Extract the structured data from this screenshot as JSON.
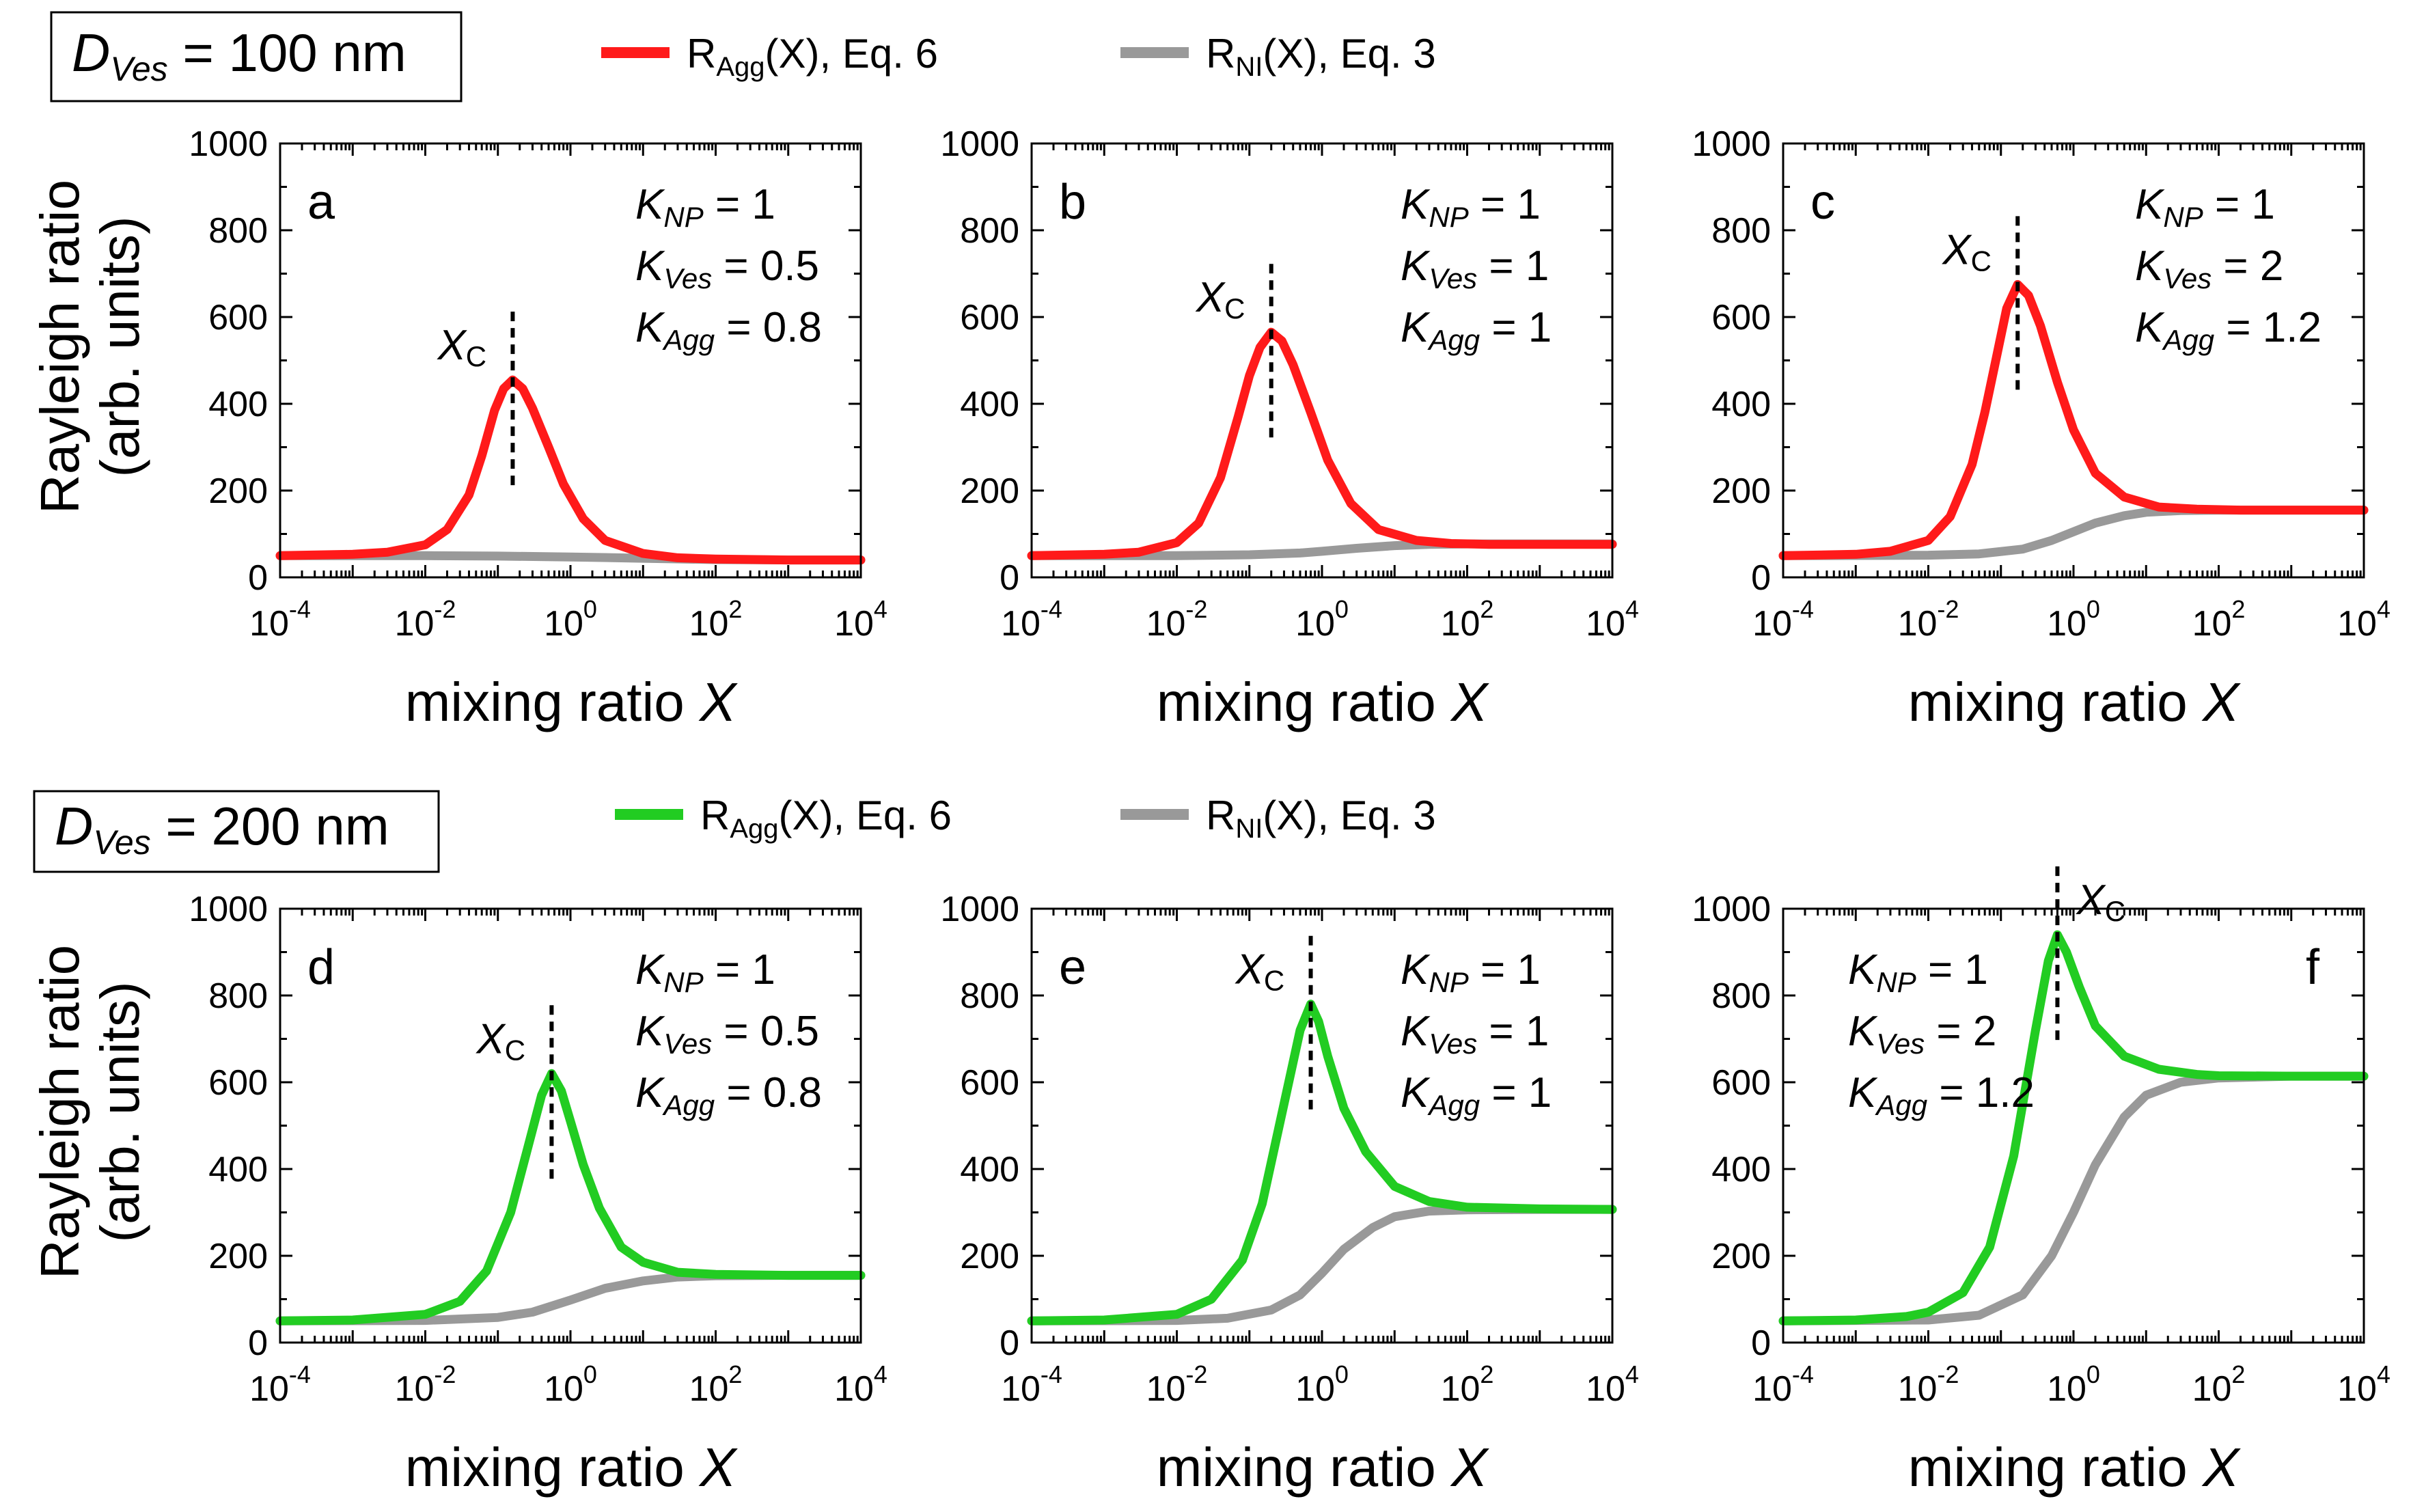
{
  "figure": {
    "rows": [
      {
        "label_prefix": "D",
        "label_sub": "Ves",
        "label_rest": " = 100 nm",
        "legend": [
          {
            "main": "R",
            "sub": "Agg",
            "rest": "(X), Eq. 6",
            "color": "#ff1a1a"
          },
          {
            "main": "R",
            "sub": "NI",
            "rest": "(X), Eq. 3",
            "color": "#999999"
          }
        ]
      },
      {
        "label_prefix": "D",
        "label_sub": "Ves",
        "label_rest": " = 200 nm",
        "legend": [
          {
            "main": "R",
            "sub": "Agg",
            "rest": "(X), Eq. 6",
            "color": "#22cc22"
          },
          {
            "main": "R",
            "sub": "NI",
            "rest": "(X), Eq. 3",
            "color": "#999999"
          }
        ]
      }
    ],
    "ylabel_line1": "Rayleigh ratio",
    "ylabel_line2": "(arb. units)",
    "xlabel_main": "mixing ratio ",
    "xlabel_var": "X",
    "xc_main": "X",
    "xc_sub": "C",
    "y_ticks": [
      "0",
      "200",
      "400",
      "600",
      "800",
      "1000"
    ],
    "x_ticks": [
      {
        "base": "10",
        "exp": "-4"
      },
      {
        "base": "10",
        "exp": "-2"
      },
      {
        "base": "10",
        "exp": "0"
      },
      {
        "base": "10",
        "exp": "2"
      },
      {
        "base": "10",
        "exp": "4"
      }
    ]
  },
  "chart_data": [
    {
      "type": "line",
      "panel": "a",
      "row": 0,
      "col": 0,
      "params": [
        {
          "name": "K",
          "sub": "NP",
          "value": "= 1"
        },
        {
          "name": "K",
          "sub": "Ves",
          "value": "= 0.5"
        },
        {
          "name": "K",
          "sub": "Agg",
          "value": "= 0.8"
        }
      ],
      "xscale": "log",
      "xlim": [
        0.0001,
        10000
      ],
      "ylim": [
        0,
        1000
      ],
      "xc": 0.16,
      "series": [
        {
          "name": "R_Agg(X), Eq. 6",
          "color": "#ff1a1a",
          "x": [
            0.0001,
            0.001,
            0.003,
            0.01,
            0.02,
            0.04,
            0.06,
            0.09,
            0.12,
            0.16,
            0.22,
            0.3,
            0.5,
            0.8,
            1.5,
            3,
            10,
            30,
            100,
            1000,
            10000
          ],
          "y": [
            50,
            53,
            58,
            75,
            110,
            190,
            280,
            385,
            435,
            455,
            435,
            390,
            300,
            215,
            135,
            85,
            55,
            45,
            42,
            40,
            40
          ]
        },
        {
          "name": "R_NI(X), Eq. 3",
          "color": "#999999",
          "x": [
            0.0001,
            0.01,
            0.1,
            1,
            10,
            100,
            1000,
            10000
          ],
          "y": [
            50,
            50,
            49,
            47,
            44,
            41,
            40,
            40
          ]
        }
      ]
    },
    {
      "type": "line",
      "panel": "b",
      "row": 0,
      "col": 1,
      "params": [
        {
          "name": "K",
          "sub": "NP",
          "value": "= 1"
        },
        {
          "name": "K",
          "sub": "Ves",
          "value": "= 1"
        },
        {
          "name": "K",
          "sub": "Agg",
          "value": "= 1"
        }
      ],
      "xscale": "log",
      "xlim": [
        0.0001,
        10000
      ],
      "ylim": [
        0,
        1000
      ],
      "xc": 0.2,
      "series": [
        {
          "name": "R_Agg(X), Eq. 6",
          "color": "#ff1a1a",
          "x": [
            0.0001,
            0.001,
            0.003,
            0.01,
            0.02,
            0.04,
            0.07,
            0.1,
            0.14,
            0.2,
            0.28,
            0.4,
            0.7,
            1.2,
            2.5,
            6,
            20,
            60,
            200,
            1000,
            10000
          ],
          "y": [
            50,
            53,
            58,
            80,
            125,
            230,
            370,
            465,
            530,
            565,
            545,
            490,
            380,
            270,
            170,
            110,
            85,
            78,
            76,
            76,
            76
          ]
        },
        {
          "name": "R_NI(X), Eq. 3",
          "color": "#999999",
          "x": [
            0.0001,
            0.01,
            0.1,
            0.5,
            1,
            3,
            10,
            30,
            100,
            1000,
            10000
          ],
          "y": [
            50,
            50,
            52,
            56,
            60,
            67,
            73,
            76,
            77,
            77,
            77
          ]
        }
      ]
    },
    {
      "type": "line",
      "panel": "c",
      "row": 0,
      "col": 2,
      "params": [
        {
          "name": "K",
          "sub": "NP",
          "value": "= 1"
        },
        {
          "name": "K",
          "sub": "Ves",
          "value": "= 2"
        },
        {
          "name": "K",
          "sub": "Agg",
          "value": "= 1.2"
        }
      ],
      "xscale": "log",
      "xlim": [
        0.0001,
        10000
      ],
      "ylim": [
        0,
        1000
      ],
      "xc": 0.17,
      "series": [
        {
          "name": "R_Agg(X), Eq. 6",
          "color": "#ff1a1a",
          "x": [
            0.0001,
            0.001,
            0.003,
            0.01,
            0.02,
            0.04,
            0.06,
            0.09,
            0.12,
            0.17,
            0.24,
            0.35,
            0.6,
            1,
            2,
            5,
            15,
            50,
            200,
            1000,
            10000
          ],
          "y": [
            50,
            53,
            60,
            85,
            140,
            260,
            380,
            520,
            620,
            675,
            650,
            580,
            450,
            340,
            240,
            185,
            162,
            157,
            155,
            155,
            155
          ]
        },
        {
          "name": "R_NI(X), Eq. 3",
          "color": "#999999",
          "x": [
            0.0001,
            0.01,
            0.05,
            0.2,
            0.5,
            1,
            2,
            5,
            10,
            30,
            100,
            1000,
            10000
          ],
          "y": [
            50,
            51,
            54,
            65,
            85,
            105,
            125,
            142,
            150,
            154,
            155,
            155,
            155
          ]
        }
      ]
    },
    {
      "type": "line",
      "panel": "d",
      "row": 1,
      "col": 0,
      "params": [
        {
          "name": "K",
          "sub": "NP",
          "value": "= 1"
        },
        {
          "name": "K",
          "sub": "Ves",
          "value": "= 0.5"
        },
        {
          "name": "K",
          "sub": "Agg",
          "value": "= 0.8"
        }
      ],
      "xscale": "log",
      "xlim": [
        0.0001,
        10000
      ],
      "ylim": [
        0,
        1000
      ],
      "xc": 0.55,
      "series": [
        {
          "name": "R_Agg(X), Eq. 6",
          "color": "#22cc22",
          "x": [
            0.0001,
            0.001,
            0.01,
            0.03,
            0.07,
            0.15,
            0.25,
            0.4,
            0.55,
            0.75,
            1,
            1.5,
            2.5,
            5,
            10,
            30,
            100,
            1000,
            10000
          ],
          "y": [
            50,
            52,
            65,
            95,
            165,
            300,
            440,
            570,
            620,
            580,
            510,
            410,
            310,
            220,
            185,
            162,
            157,
            155,
            155
          ]
        },
        {
          "name": "R_NI(X), Eq. 3",
          "color": "#999999",
          "x": [
            0.0001,
            0.01,
            0.1,
            0.3,
            1,
            3,
            10,
            30,
            100,
            1000,
            10000
          ],
          "y": [
            50,
            51,
            58,
            70,
            98,
            125,
            142,
            151,
            154,
            155,
            155
          ]
        }
      ]
    },
    {
      "type": "line",
      "panel": "e",
      "row": 1,
      "col": 1,
      "params": [
        {
          "name": "K",
          "sub": "NP",
          "value": "= 1"
        },
        {
          "name": "K",
          "sub": "Ves",
          "value": "= 1"
        },
        {
          "name": "K",
          "sub": "Agg",
          "value": "= 1"
        }
      ],
      "xscale": "log",
      "xlim": [
        0.0001,
        10000
      ],
      "ylim": [
        0,
        1000
      ],
      "xc": 0.7,
      "series": [
        {
          "name": "R_Agg(X), Eq. 6",
          "color": "#22cc22",
          "x": [
            0.0001,
            0.001,
            0.01,
            0.03,
            0.08,
            0.15,
            0.3,
            0.5,
            0.7,
            0.9,
            1.2,
            2,
            4,
            10,
            30,
            100,
            1000,
            10000
          ],
          "y": [
            50,
            52,
            65,
            100,
            190,
            320,
            550,
            720,
            780,
            740,
            660,
            540,
            440,
            360,
            325,
            312,
            308,
            307
          ]
        },
        {
          "name": "R_NI(X), Eq. 3",
          "color": "#999999",
          "x": [
            0.0001,
            0.01,
            0.05,
            0.2,
            0.5,
            1,
            2,
            5,
            10,
            30,
            100,
            1000,
            10000
          ],
          "y": [
            50,
            51,
            56,
            75,
            110,
            160,
            215,
            265,
            290,
            303,
            306,
            307,
            307
          ]
        }
      ]
    },
    {
      "type": "line",
      "panel": "f",
      "row": 1,
      "col": 2,
      "params": [
        {
          "name": "K",
          "sub": "NP",
          "value": "= 1"
        },
        {
          "name": "K",
          "sub": "Ves",
          "value": "= 2"
        },
        {
          "name": "K",
          "sub": "Agg",
          "value": "= 1.2"
        }
      ],
      "xscale": "log",
      "xlim": [
        0.0001,
        10000
      ],
      "ylim": [
        0,
        1000
      ],
      "xc": 0.6,
      "series": [
        {
          "name": "R_Agg(X), Eq. 6",
          "color": "#22cc22",
          "x": [
            0.0001,
            0.001,
            0.005,
            0.01,
            0.03,
            0.07,
            0.15,
            0.3,
            0.45,
            0.6,
            0.8,
            1.2,
            2,
            5,
            15,
            50,
            100,
            1000,
            10000
          ],
          "y": [
            50,
            52,
            60,
            70,
            115,
            220,
            430,
            720,
            880,
            940,
            900,
            820,
            730,
            660,
            630,
            618,
            615,
            614,
            614
          ]
        },
        {
          "name": "R_NI(X), Eq. 3",
          "color": "#999999",
          "x": [
            0.0001,
            0.01,
            0.05,
            0.2,
            0.5,
            1,
            2,
            5,
            10,
            30,
            100,
            1000,
            10000
          ],
          "y": [
            50,
            52,
            63,
            110,
            200,
            300,
            410,
            520,
            570,
            600,
            610,
            614,
            614
          ]
        }
      ]
    }
  ]
}
